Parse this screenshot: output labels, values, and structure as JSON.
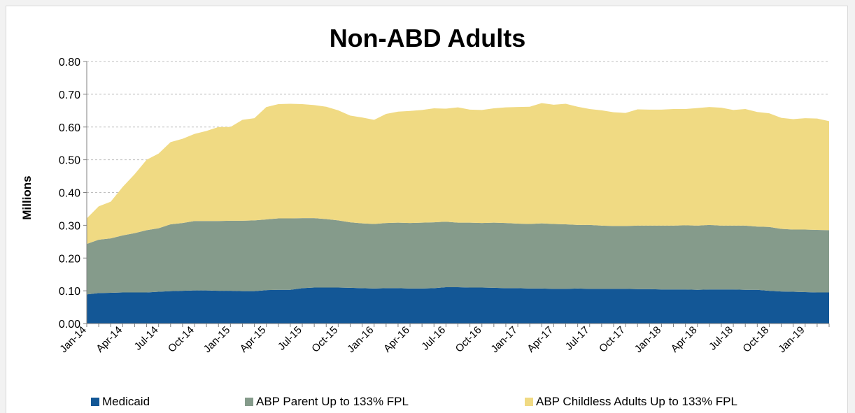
{
  "chart_data": {
    "type": "area",
    "stacked": true,
    "title": "Non-ABD Adults",
    "ylabel": "Millions",
    "xlabel": "",
    "ylim": [
      0,
      0.8
    ],
    "yticks": [
      "0.00",
      "0.10",
      "0.20",
      "0.30",
      "0.40",
      "0.50",
      "0.60",
      "0.70",
      "0.80"
    ],
    "grid": true,
    "legend_position": "bottom",
    "x": [
      "Jan-14",
      "Feb-14",
      "Mar-14",
      "Apr-14",
      "May-14",
      "Jun-14",
      "Jul-14",
      "Aug-14",
      "Sep-14",
      "Oct-14",
      "Nov-14",
      "Dec-14",
      "Jan-15",
      "Feb-15",
      "Mar-15",
      "Apr-15",
      "May-15",
      "Jun-15",
      "Jul-15",
      "Aug-15",
      "Sep-15",
      "Oct-15",
      "Nov-15",
      "Dec-15",
      "Jan-16",
      "Feb-16",
      "Mar-16",
      "Apr-16",
      "May-16",
      "Jun-16",
      "Jul-16",
      "Aug-16",
      "Sep-16",
      "Oct-16",
      "Nov-16",
      "Dec-16",
      "Jan-17",
      "Feb-17",
      "Mar-17",
      "Apr-17",
      "May-17",
      "Jun-17",
      "Jul-17",
      "Aug-17",
      "Sep-17",
      "Oct-17",
      "Nov-17",
      "Dec-17",
      "Jan-18",
      "Feb-18",
      "Mar-18",
      "Apr-18",
      "May-18",
      "Jun-18",
      "Jul-18",
      "Aug-18",
      "Sep-18",
      "Oct-18",
      "Nov-18",
      "Dec-18",
      "Jan-19",
      "Feb-19",
      "Mar-19"
    ],
    "xtick_labels": [
      "Jan-14",
      "Apr-14",
      "Jul-14",
      "Oct-14",
      "Jan-15",
      "Apr-15",
      "Jul-15",
      "Oct-15",
      "Jan-16",
      "Apr-16",
      "Jul-16",
      "Oct-16",
      "Jan-17",
      "Apr-17",
      "Jul-17",
      "Oct-17",
      "Jan-18",
      "Apr-18",
      "Jul-18",
      "Oct-18",
      "Jan-19"
    ],
    "series": [
      {
        "name": "Medicaid",
        "color": "#135796",
        "values": [
          0.089,
          0.093,
          0.094,
          0.095,
          0.095,
          0.095,
          0.097,
          0.099,
          0.1,
          0.101,
          0.101,
          0.1,
          0.1,
          0.099,
          0.099,
          0.102,
          0.103,
          0.103,
          0.108,
          0.11,
          0.11,
          0.11,
          0.109,
          0.108,
          0.107,
          0.108,
          0.108,
          0.107,
          0.107,
          0.108,
          0.111,
          0.111,
          0.11,
          0.11,
          0.109,
          0.108,
          0.108,
          0.107,
          0.107,
          0.106,
          0.106,
          0.107,
          0.106,
          0.106,
          0.106,
          0.106,
          0.105,
          0.105,
          0.104,
          0.104,
          0.104,
          0.103,
          0.104,
          0.104,
          0.104,
          0.103,
          0.103,
          0.1,
          0.098,
          0.097,
          0.096,
          0.095,
          0.095
        ]
      },
      {
        "name": "ABP Parent Up to 133% FPL",
        "color": "#859b8b",
        "values": [
          0.154,
          0.163,
          0.166,
          0.174,
          0.181,
          0.19,
          0.194,
          0.204,
          0.207,
          0.212,
          0.212,
          0.213,
          0.214,
          0.215,
          0.216,
          0.216,
          0.218,
          0.218,
          0.214,
          0.212,
          0.209,
          0.205,
          0.2,
          0.198,
          0.197,
          0.199,
          0.2,
          0.2,
          0.201,
          0.201,
          0.2,
          0.197,
          0.198,
          0.197,
          0.199,
          0.199,
          0.197,
          0.197,
          0.199,
          0.198,
          0.197,
          0.194,
          0.195,
          0.193,
          0.192,
          0.192,
          0.194,
          0.194,
          0.195,
          0.195,
          0.196,
          0.196,
          0.197,
          0.195,
          0.195,
          0.196,
          0.193,
          0.195,
          0.191,
          0.19,
          0.191,
          0.191,
          0.19
        ]
      },
      {
        "name": "ABP Childless Adults Up to 133% FPL",
        "color": "#f0da83",
        "values": [
          0.078,
          0.102,
          0.112,
          0.148,
          0.18,
          0.215,
          0.228,
          0.251,
          0.257,
          0.266,
          0.275,
          0.287,
          0.286,
          0.308,
          0.312,
          0.343,
          0.349,
          0.35,
          0.348,
          0.345,
          0.343,
          0.336,
          0.326,
          0.323,
          0.318,
          0.333,
          0.339,
          0.342,
          0.344,
          0.348,
          0.345,
          0.352,
          0.345,
          0.345,
          0.349,
          0.353,
          0.356,
          0.358,
          0.367,
          0.364,
          0.368,
          0.361,
          0.354,
          0.352,
          0.347,
          0.345,
          0.355,
          0.354,
          0.354,
          0.356,
          0.355,
          0.359,
          0.36,
          0.36,
          0.353,
          0.356,
          0.35,
          0.347,
          0.339,
          0.337,
          0.34,
          0.34,
          0.333
        ]
      }
    ]
  }
}
